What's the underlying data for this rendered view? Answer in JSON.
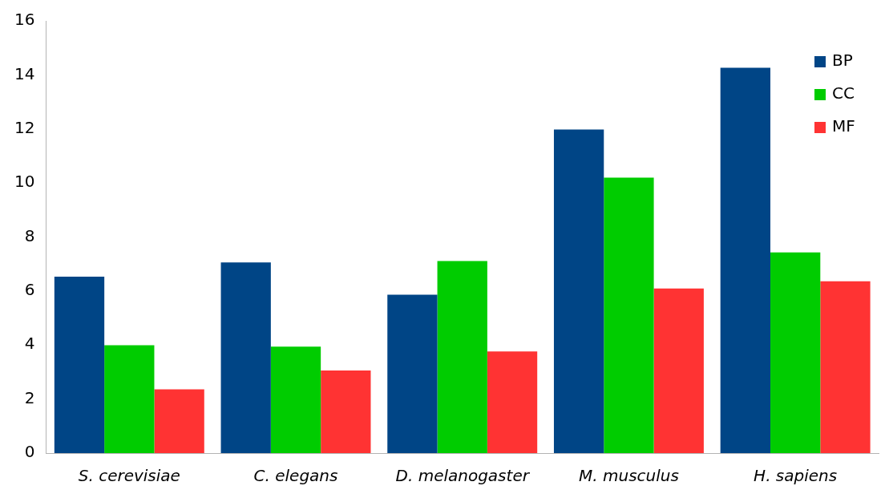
{
  "chart_data": {
    "type": "bar",
    "categories": [
      "S. cerevisiae",
      "C. elegans",
      "D. melanogaster",
      "M. musculus",
      "H. sapiens"
    ],
    "series": [
      {
        "name": "BP",
        "color": "#004586",
        "values": [
          6.53,
          7.06,
          5.86,
          11.98,
          14.26
        ]
      },
      {
        "name": "CC",
        "color": "#00cc00",
        "values": [
          3.99,
          3.94,
          7.11,
          10.2,
          7.43
        ]
      },
      {
        "name": "MF",
        "color": "#ff3333",
        "values": [
          2.36,
          3.06,
          3.76,
          6.09,
          6.36
        ]
      }
    ],
    "ylim": [
      0,
      16
    ],
    "yticks": [
      0,
      2,
      4,
      6,
      8,
      10,
      12,
      14,
      16
    ],
    "grid": false,
    "legend": "top right"
  }
}
